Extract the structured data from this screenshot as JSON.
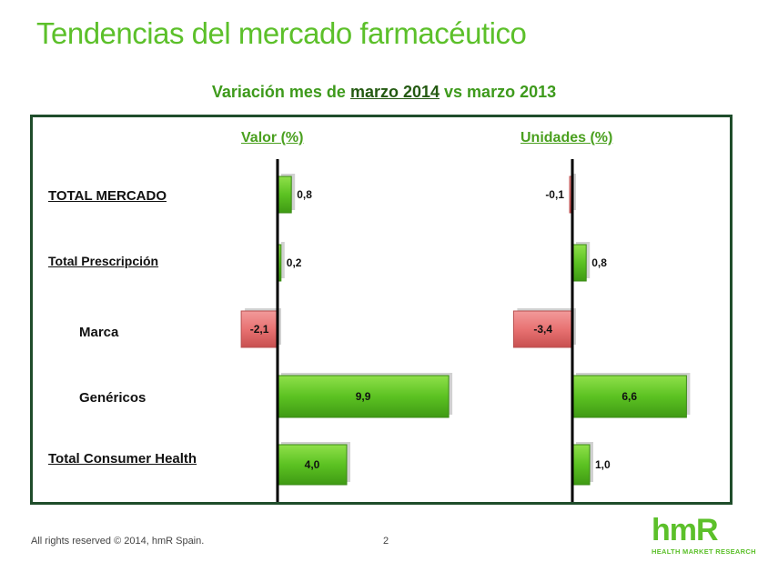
{
  "page": {
    "title": "Tendencias del mercado farmacéutico",
    "subtitle_prefix": "Variación mes de",
    "subtitle_underlined": "marzo 2014",
    "subtitle_suffix": "vs marzo 2013",
    "footer_rights": "All rights reserved © 2014, hmR Spain.",
    "page_number": "2",
    "logo_text": "hmR",
    "logo_tagline": "HEALTH MARKET RESEARCH"
  },
  "colors": {
    "accent": "#5cc02a",
    "positive_bar": "#66cc22",
    "negative_bar": "#e87272",
    "panel_border": "#1f4d2b"
  },
  "chart_data": {
    "type": "bar",
    "orientation": "horizontal",
    "categories": [
      "TOTAL MERCADO",
      "Total Prescripción",
      "Marca",
      "Genéricos",
      "Total Consumer Health"
    ],
    "category_style": [
      "main",
      "main",
      "sub",
      "sub",
      "main"
    ],
    "series": [
      {
        "name": "Valor (%)",
        "values": [
          0.8,
          0.2,
          -2.1,
          9.9,
          4.0
        ],
        "labels": [
          "0,8",
          "0,2",
          "-2,1",
          "9,9",
          "4,0"
        ]
      },
      {
        "name": "Unidades (%)",
        "values": [
          -0.1,
          0.8,
          -3.4,
          6.6,
          1.0
        ],
        "labels": [
          "-0,1",
          "0,8",
          "-3,4",
          "6,6",
          "1,0"
        ]
      }
    ],
    "grid": false
  }
}
